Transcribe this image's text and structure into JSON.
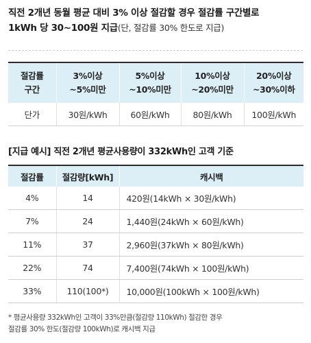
{
  "headline": {
    "line1": "직전 2개년 동월 평균 대비 3% 이상 절감할 경우 절감률 구간별로",
    "line2": "1kWh 당 30~100원 지급",
    "note": "(단, 절감률 30% 한도로 지급)"
  },
  "rate_table": {
    "header_label_1": "절감률",
    "header_label_2": "구간",
    "ranges": [
      {
        "line1": "3%이상",
        "line2": "~5%미만"
      },
      {
        "line1": "5%이상",
        "line2": "~10%미만"
      },
      {
        "line1": "10%이상",
        "line2": "~20%미만"
      },
      {
        "line1": "20%이상",
        "line2": "~30%이하"
      }
    ],
    "price_label": "단가",
    "prices": [
      "30원/kWh",
      "60원/kWh",
      "80원/kWh",
      "100원/kWh"
    ]
  },
  "example": {
    "title": "[지급 예시] 직전 2개년 평균사용량이 332kWh인 고객 기준",
    "headers": [
      "절감률",
      "절감량[kWh]",
      "캐시백"
    ],
    "rows": [
      {
        "rate": "4%",
        "amount": "14",
        "cashback": "420원(14kWh × 30원/kWh)"
      },
      {
        "rate": "7%",
        "amount": "24",
        "cashback": "1,440원(24kWh × 60원/kWh)"
      },
      {
        "rate": "11%",
        "amount": "37",
        "cashback": "2,960원(37kWh × 80원/kWh)"
      },
      {
        "rate": "22%",
        "amount": "74",
        "cashback": "7,400원(74kWh × 100원/kWh)"
      },
      {
        "rate": "33%",
        "amount": "110(100*)",
        "cashback": "10,000원(100kWh × 100원/kWh)"
      }
    ]
  },
  "footnote": {
    "line1": "* 평균사용량 332kWh인 고객이 33%만큼(절감량 110kWh) 절감한 경우",
    "line2": "절감률 30% 한도(절감량 100kWh)로 캐시백 지급"
  }
}
